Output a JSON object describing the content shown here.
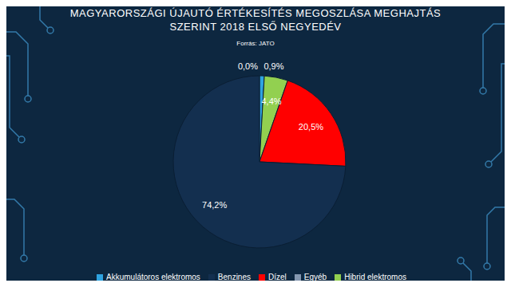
{
  "chart_data": {
    "type": "pie",
    "title": "MAGYARORSZÁGI ÚJAUTÓ ÉRTÉKESÍTÉS MEGOSZLÁSA MEGHAJTÁS SZERINT 2018 ELSŐ NEGYEDÉV",
    "subtitle": "Forrás: JATO",
    "categories": [
      "Akkumulátoros elektromos",
      "Hibrid elektromos",
      "Dízel",
      "Benzines",
      "Egyéb"
    ],
    "values": [
      0.9,
      4.4,
      20.5,
      74.2,
      0.0
    ],
    "value_labels": [
      "0,9%",
      "4,4%",
      "20,5%",
      "74,2%",
      "0,0%"
    ],
    "colors": [
      "#2fa3e0",
      "#92d050",
      "#ff0000",
      "#132f4f",
      "#8497b0"
    ],
    "legend": "bottom",
    "data_labels": true
  }
}
